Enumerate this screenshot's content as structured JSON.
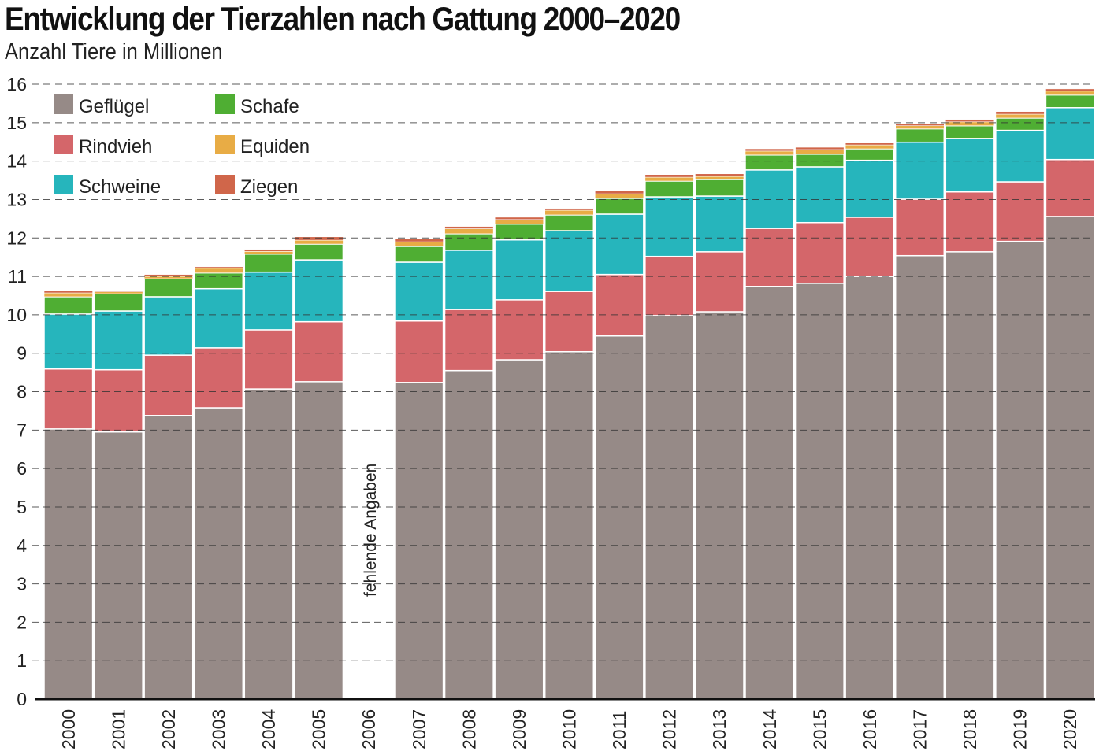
{
  "chart_data": {
    "type": "bar",
    "stacked": true,
    "title": "Entwicklung der Tierzahlen nach Gattung 2000–2020",
    "subtitle": "Anzahl Tiere in Millionen",
    "xlabel": "",
    "ylabel": "",
    "ylim": [
      0,
      16
    ],
    "yticks": [
      0,
      1,
      2,
      3,
      4,
      5,
      6,
      7,
      8,
      9,
      10,
      11,
      12,
      13,
      14,
      15,
      16
    ],
    "grid": true,
    "legend": "top-left",
    "annotation": "fehlende Angaben",
    "categories": [
      "2000",
      "2001",
      "2002",
      "2003",
      "2004",
      "2005",
      "2006",
      "2007",
      "2008",
      "2009",
      "2010",
      "2011",
      "2012",
      "2013",
      "2014",
      "2015",
      "2016",
      "2017",
      "2018",
      "2019",
      "2020"
    ],
    "series": [
      {
        "name": "Geflügel",
        "color": "#968a87",
        "values": [
          7.03,
          6.95,
          7.38,
          7.58,
          8.07,
          8.26,
          null,
          8.24,
          8.55,
          8.83,
          9.04,
          9.45,
          9.98,
          10.08,
          10.74,
          10.82,
          11.0,
          11.54,
          11.64,
          11.91,
          12.56
        ]
      },
      {
        "name": "Rindvieh",
        "color": "#d4666a",
        "values": [
          1.56,
          1.62,
          1.57,
          1.56,
          1.54,
          1.56,
          null,
          1.6,
          1.59,
          1.56,
          1.57,
          1.6,
          1.54,
          1.56,
          1.51,
          1.58,
          1.54,
          1.47,
          1.56,
          1.55,
          1.48
        ]
      },
      {
        "name": "Schweine",
        "color": "#26b5bc",
        "values": [
          1.43,
          1.53,
          1.52,
          1.54,
          1.5,
          1.61,
          null,
          1.53,
          1.54,
          1.56,
          1.58,
          1.57,
          1.55,
          1.45,
          1.52,
          1.45,
          1.48,
          1.48,
          1.39,
          1.34,
          1.35
        ]
      },
      {
        "name": "Schafe",
        "color": "#4fae33",
        "values": [
          0.45,
          0.45,
          0.47,
          0.41,
          0.47,
          0.41,
          null,
          0.41,
          0.43,
          0.41,
          0.41,
          0.41,
          0.41,
          0.43,
          0.39,
          0.33,
          0.3,
          0.35,
          0.33,
          0.32,
          0.33
        ]
      },
      {
        "name": "Equiden",
        "color": "#e8ac45",
        "values": [
          0.1,
          0.05,
          0.06,
          0.12,
          0.07,
          0.1,
          null,
          0.12,
          0.13,
          0.12,
          0.12,
          0.12,
          0.1,
          0.08,
          0.1,
          0.12,
          0.1,
          0.08,
          0.1,
          0.1,
          0.1
        ]
      },
      {
        "name": "Ziegen",
        "color": "#d0664a",
        "values": [
          0.05,
          0.03,
          0.05,
          0.04,
          0.05,
          0.09,
          null,
          0.09,
          0.06,
          0.06,
          0.05,
          0.07,
          0.07,
          0.07,
          0.06,
          0.06,
          0.05,
          0.06,
          0.06,
          0.07,
          0.06
        ]
      }
    ]
  }
}
